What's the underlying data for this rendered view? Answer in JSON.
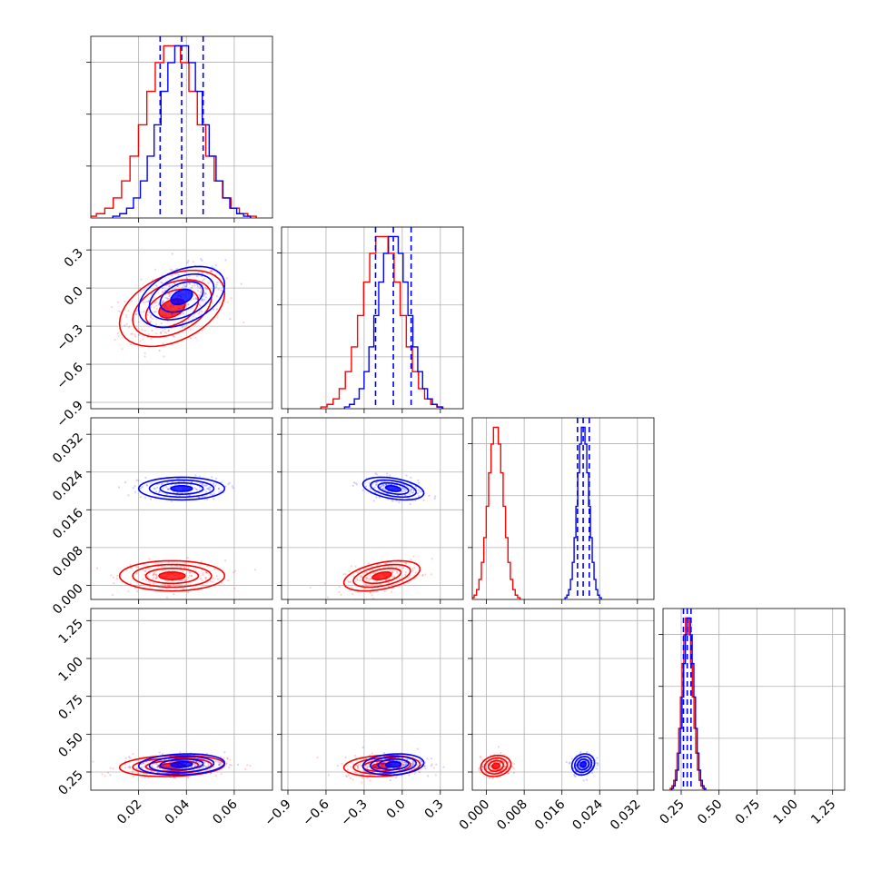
{
  "chart_data": {
    "type": "scatter",
    "description_free": true,
    "colors": {
      "series_a": "#ff0000",
      "series_b": "#0000ff",
      "grid": "#b0b0b0"
    },
    "parameters": [
      {
        "range": [
          0.0,
          0.076
        ],
        "ticks": [
          0.02,
          0.04,
          0.06
        ],
        "tick_labels": [
          "0.02",
          "0.04",
          "0.06"
        ]
      },
      {
        "range": [
          -0.95,
          0.48
        ],
        "ticks": [
          -0.9,
          -0.6,
          -0.3,
          0.0,
          0.3
        ],
        "tick_labels": [
          "−0.9",
          "−0.6",
          "−0.3",
          "0.0",
          "0.3"
        ]
      },
      {
        "range": [
          -0.003,
          0.0355
        ],
        "ticks": [
          0.0,
          0.008,
          0.016,
          0.024,
          0.032
        ],
        "tick_labels": [
          "0.000",
          "0.008",
          "0.016",
          "0.024",
          "0.032"
        ]
      },
      {
        "range": [
          0.13,
          1.33
        ],
        "ticks": [
          0.25,
          0.5,
          0.75,
          1.0,
          1.25
        ],
        "tick_labels": [
          "0.25",
          "0.50",
          "0.75",
          "1.00",
          "1.25"
        ]
      }
    ],
    "series": [
      {
        "color": "#ff0000",
        "mean": [
          0.034,
          -0.16,
          0.002,
          0.29
        ],
        "sd": [
          0.011,
          0.15,
          0.0016,
          0.035
        ],
        "corr01": 0.4,
        "corr12": 0.45
      },
      {
        "color": "#0000ff",
        "mean": [
          0.038,
          -0.07,
          0.0205,
          0.3
        ],
        "sd": [
          0.009,
          0.12,
          0.0012,
          0.035
        ],
        "corr01": 0.4,
        "corr12": -0.4
      }
    ],
    "quantile_lines": {
      "color": "#0000ff",
      "values": [
        [
          0.029,
          0.038,
          0.047
        ],
        [
          -0.21,
          -0.07,
          0.07
        ],
        [
          0.0193,
          0.0205,
          0.0218
        ],
        [
          0.265,
          0.29,
          0.315
        ]
      ]
    },
    "grid": true
  }
}
